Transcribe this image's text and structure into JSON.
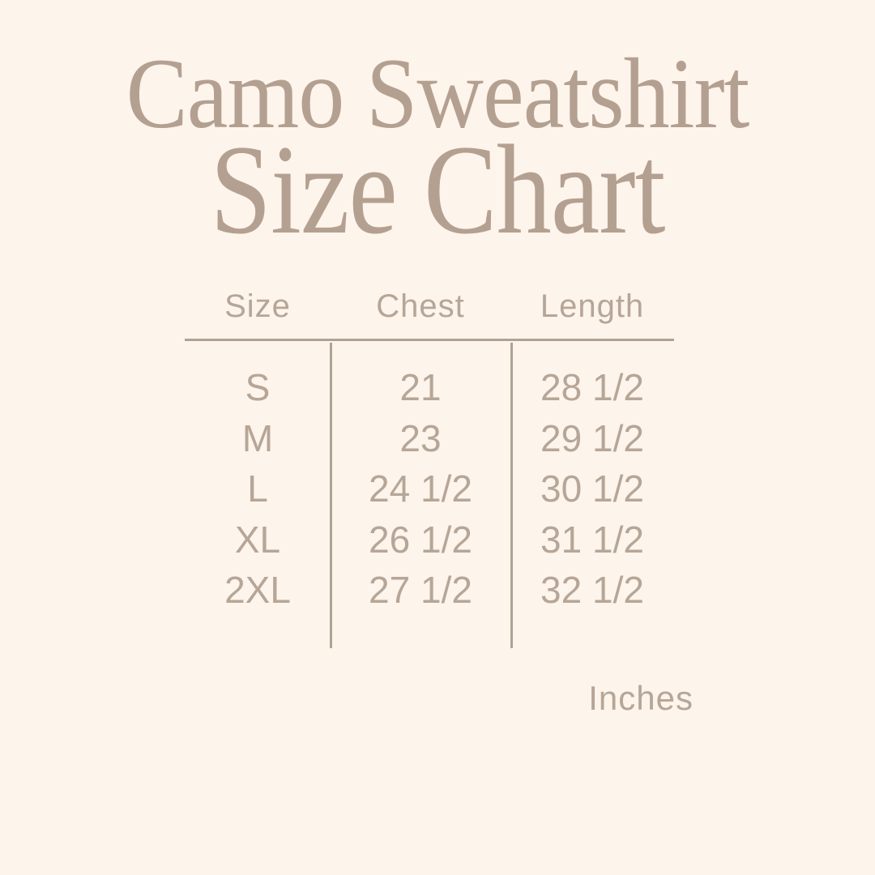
{
  "theme": {
    "bg": "#fdf4eb",
    "title": "#b4a091",
    "text": "#b6a697",
    "line": "#b1a294"
  },
  "title": {
    "line1": "Camo Sweatshirt",
    "line2": "Size Chart"
  },
  "table": {
    "headers": [
      "Size",
      "Chest",
      "Length"
    ],
    "rows": [
      {
        "size": "S",
        "chest": "21",
        "length": "28 1/2"
      },
      {
        "size": "M",
        "chest": "23",
        "length": "29 1/2"
      },
      {
        "size": "L",
        "chest": "24 1/2",
        "length": "30 1/2"
      },
      {
        "size": "XL",
        "chest": "26 1/2",
        "length": "31 1/2"
      },
      {
        "size": "2XL",
        "chest": "27 1/2",
        "length": "32 1/2"
      }
    ],
    "unit_label": "Inches"
  },
  "chart_data": {
    "type": "table",
    "title": "Camo Sweatshirt Size Chart",
    "columns": [
      "Size",
      "Chest",
      "Length"
    ],
    "rows": [
      [
        "S",
        "21",
        "28 1/2"
      ],
      [
        "M",
        "23",
        "29 1/2"
      ],
      [
        "L",
        "24 1/2",
        "30 1/2"
      ],
      [
        "XL",
        "26 1/2",
        "31 1/2"
      ],
      [
        "2XL",
        "27 1/2",
        "32 1/2"
      ]
    ],
    "units": "Inches",
    "layout": {
      "header_rule": true,
      "column_dividers": true,
      "gridlines": "partial"
    }
  }
}
